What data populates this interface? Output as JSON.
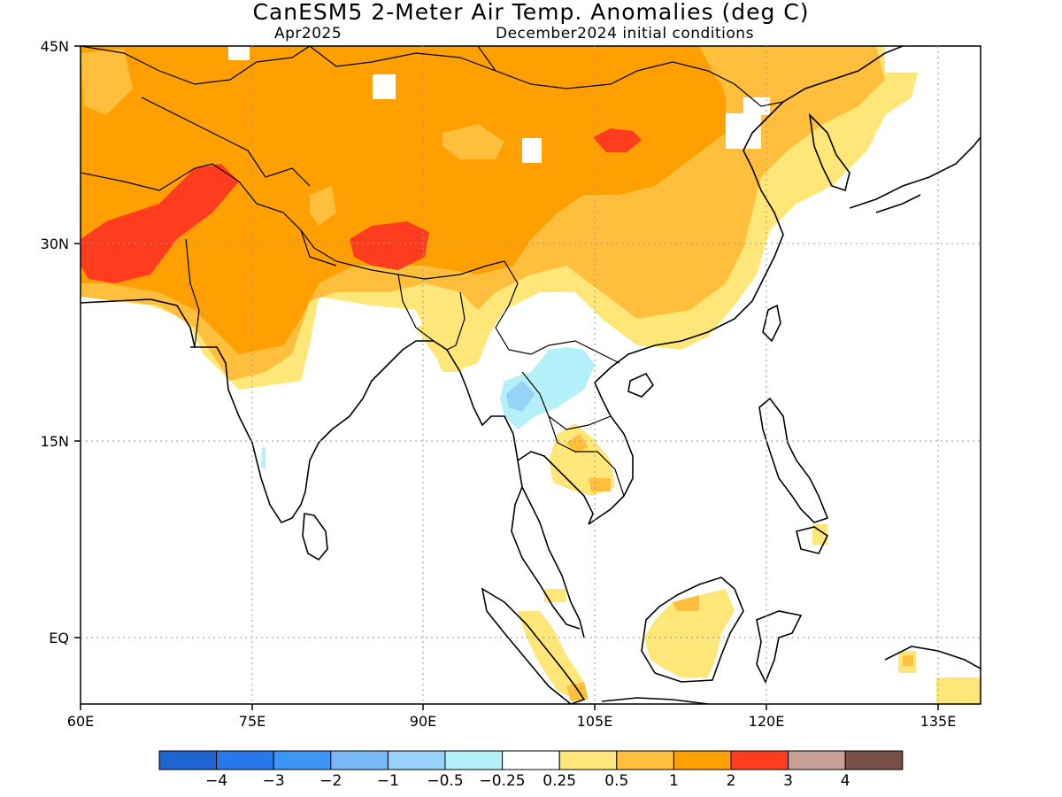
{
  "header": {
    "title": "CanESM5 2-Meter Air Temp. Anomalies (deg C)",
    "valid_month": "Apr2025",
    "init_conditions": "December2024 initial conditions"
  },
  "axes": {
    "lat_labels": [
      "45N",
      "30N",
      "15N",
      "EQ"
    ],
    "lon_labels": [
      "60E",
      "75E",
      "90E",
      "105E",
      "120E",
      "135E"
    ]
  },
  "colorbar": {
    "colors": [
      "#1e64d2",
      "#2878eb",
      "#3c96f5",
      "#78b9fa",
      "#96d2fa",
      "#b4f0fa",
      "#ffffff",
      "#ffe678",
      "#ffbe3c",
      "#ffa000",
      "#ff3c1e",
      "#c8a096",
      "#785046"
    ],
    "labels": [
      "−4",
      "−3",
      "−2",
      "−1",
      "−0.5",
      "−0.25",
      "0.25",
      "0.5",
      "1",
      "2",
      "3",
      "4"
    ]
  },
  "legend_colors": {
    "light_yellow": "#ffe678",
    "yellow_orange": "#ffbe3c",
    "orange": "#ffa000",
    "red": "#ff3c1e",
    "light_blue": "#b4f0fa",
    "blue": "#96d2fa"
  }
}
